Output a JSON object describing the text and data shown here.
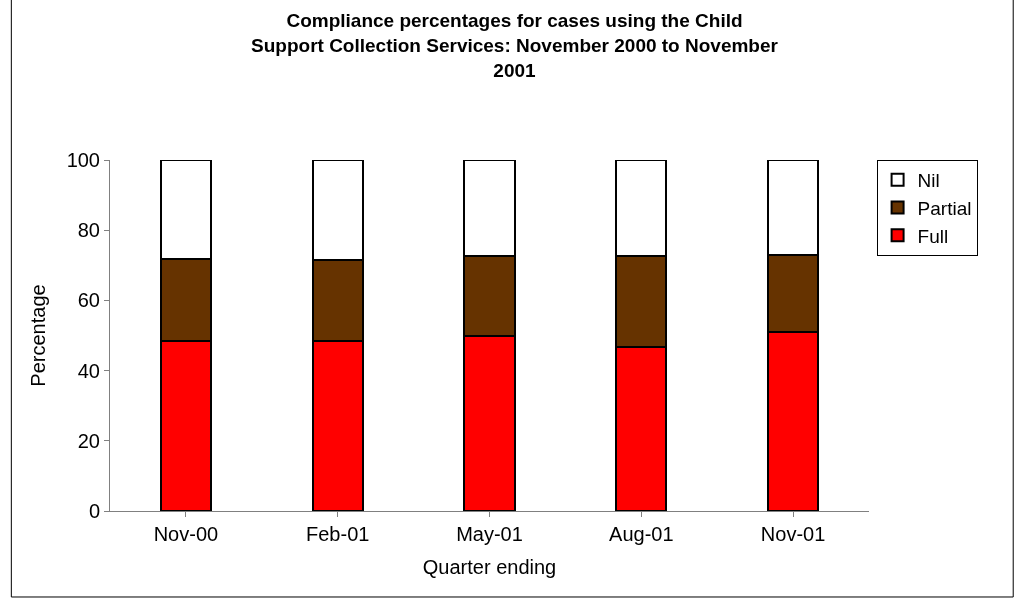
{
  "chart_data": {
    "type": "bar",
    "stacked": true,
    "title": "Compliance percentages for cases using the Child Support Collection Services: November 2000 to November 2001",
    "xlabel": "Quarter ending",
    "ylabel": "Percentage",
    "categories": [
      "Nov-00",
      "Feb-01",
      "May-01",
      "Aug-01",
      "Nov-01"
    ],
    "series": [
      {
        "name": "Full",
        "color": "#ff0000",
        "values": [
          48.4,
          48.4,
          49.9,
          46.8,
          51.1
        ]
      },
      {
        "name": "Partial",
        "color": "#663300",
        "values": [
          23.4,
          23.0,
          22.7,
          25.9,
          21.7
        ]
      },
      {
        "name": "Nil",
        "color": "#ffffff",
        "values": [
          28.2,
          28.6,
          27.4,
          27.3,
          27.2
        ]
      }
    ],
    "ylim": [
      0,
      100
    ],
    "yticks": [
      0,
      20,
      40,
      60,
      80,
      100
    ],
    "grid": false,
    "legend": "top right"
  }
}
